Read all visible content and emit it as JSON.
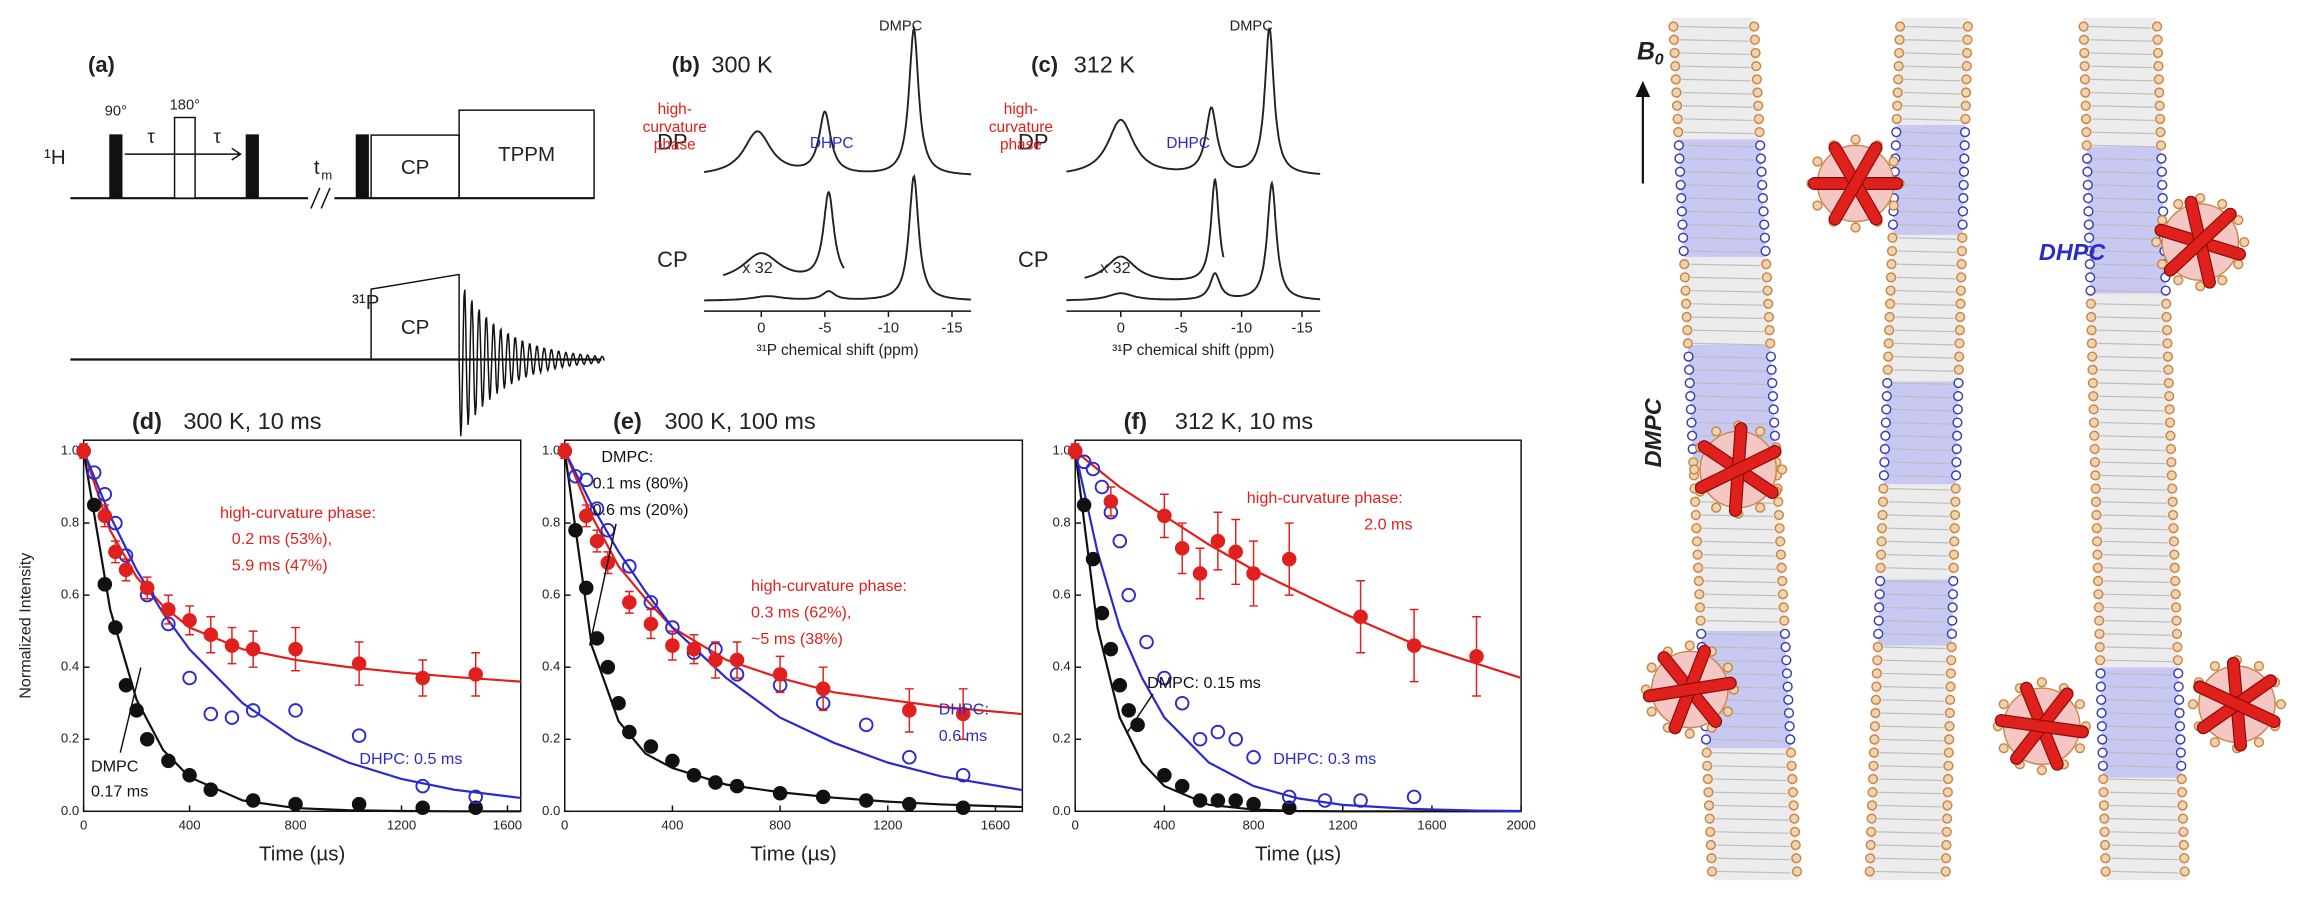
{
  "pulse_sequence": {
    "label": "(a)",
    "h_channel": "¹H",
    "p_channel": "³¹P",
    "pulse_90": "90°",
    "pulse_180": "180°",
    "tau_1": "τ",
    "tau_2": "τ",
    "mixing": "t",
    "mixing_sub": "m",
    "cp_h": "CP",
    "decoupling": "TPPM",
    "cp_p": "CP"
  },
  "spectra": [
    {
      "label": "(b)",
      "temperature": "300 K",
      "xlabel": "³¹P chemical shift (ppm)",
      "xlim": [
        4.5,
        -16.5
      ],
      "xticks": [
        0,
        -5,
        -10,
        -15
      ],
      "peak_labels": {
        "dmpc": "DMPC",
        "hc": [
          "high-",
          "curvature",
          "phase"
        ],
        "dhpc": "DHPC"
      },
      "scale_label": "x 32",
      "traces": [
        {
          "name": "DP",
          "peaks": [
            [
              0.3,
              0.3,
              1.3
            ],
            [
              -5,
              0.42,
              0.55
            ],
            [
              -12,
              1.0,
              0.45
            ]
          ]
        },
        {
          "name": "CP",
          "peaks": [
            [
              -0.5,
              0.03,
              1.5
            ],
            [
              -5.3,
              0.06,
              0.6
            ],
            [
              -12,
              0.85,
              0.45
            ]
          ]
        },
        {
          "range": [
            3,
            -6.5
          ],
          "peaks": [
            [
              0,
              0.2,
              1.8
            ],
            [
              -5.3,
              0.6,
              0.5
            ]
          ]
        }
      ]
    },
    {
      "label": "(c)",
      "temperature": "312 K",
      "xlabel": "³¹P chemical shift (ppm)",
      "xlim": [
        4.5,
        -16.5
      ],
      "xticks": [
        0,
        -5,
        -10,
        -15
      ],
      "peak_labels": {
        "dmpc": "DMPC",
        "hc": [
          "high-",
          "curvature",
          "phase"
        ],
        "dhpc": "DHPC"
      },
      "scale_label": "x 32",
      "traces": [
        {
          "name": "DP",
          "peaks": [
            [
              0,
              0.38,
              1.3
            ],
            [
              -7.5,
              0.45,
              0.55
            ],
            [
              -12.3,
              1.0,
              0.45
            ]
          ]
        },
        {
          "name": "CP",
          "peaks": [
            [
              0,
              0.05,
              1.3
            ],
            [
              -7.8,
              0.18,
              0.5
            ],
            [
              -12.5,
              0.8,
              0.45
            ]
          ]
        },
        {
          "range": [
            3,
            -8.5
          ],
          "peaks": [
            [
              0,
              0.18,
              1.5
            ],
            [
              -7.8,
              0.7,
              0.4
            ]
          ]
        }
      ]
    }
  ],
  "chart_data": [
    {
      "type": "scatter",
      "label": "(d)",
      "title": "300 K, 10 ms",
      "ylabel": "Normalized Intensity",
      "xlabel": "Time (µs)",
      "xlim": [
        0,
        1650
      ],
      "ylim": [
        0,
        1.03
      ],
      "xticks": [
        0,
        400,
        800,
        1200,
        1600
      ],
      "yticks": [
        {
          "value": 0,
          "label": "0.0"
        },
        0.2,
        0.4,
        0.6,
        0.8,
        {
          "value": 1,
          "label": "1.0"
        }
      ],
      "series": [
        {
          "color": "#111111",
          "marker": "filled",
          "x": [
            0,
            40,
            80,
            120,
            160,
            200,
            240,
            320,
            400,
            480,
            640,
            800,
            1040,
            1280,
            1480
          ],
          "values": [
            1.0,
            0.85,
            0.63,
            0.51,
            0.35,
            0.28,
            0.2,
            0.14,
            0.1,
            0.06,
            0.03,
            0.02,
            0.02,
            0.01,
            0.01
          ]
        },
        {
          "color": "#2b2bc8",
          "marker": "open",
          "x": [
            0,
            40,
            80,
            120,
            160,
            240,
            320,
            400,
            480,
            560,
            640,
            800,
            1040,
            1280,
            1480
          ],
          "values": [
            1.0,
            0.94,
            0.88,
            0.8,
            0.71,
            0.6,
            0.52,
            0.37,
            0.27,
            0.26,
            0.28,
            0.28,
            0.21,
            0.07,
            0.04
          ]
        },
        {
          "color": "#e0201c",
          "marker": "filled",
          "x": [
            0,
            80,
            120,
            160,
            240,
            320,
            400,
            480,
            560,
            640,
            800,
            1040,
            1280,
            1480
          ],
          "values": [
            1.0,
            0.82,
            0.72,
            0.67,
            0.62,
            0.56,
            0.53,
            0.49,
            0.46,
            0.45,
            0.45,
            0.41,
            0.37,
            0.38
          ],
          "errors": [
            0.02,
            0.03,
            0.03,
            0.03,
            0.03,
            0.04,
            0.04,
            0.05,
            0.05,
            0.05,
            0.06,
            0.06,
            0.05,
            0.06
          ]
        }
      ],
      "fits": [
        {
          "color": "#e0201c",
          "x": [
            0,
            100,
            200,
            300,
            400,
            600,
            800,
            1000,
            1200,
            1400,
            1650
          ],
          "values": [
            1.0,
            0.78,
            0.65,
            0.57,
            0.51,
            0.45,
            0.42,
            0.4,
            0.385,
            0.373,
            0.36
          ]
        },
        {
          "color": "#111111",
          "x": [
            0,
            100,
            200,
            300,
            400,
            600,
            800,
            1000,
            1200,
            1400,
            1650
          ],
          "values": [
            1.0,
            0.56,
            0.31,
            0.17,
            0.095,
            0.03,
            0.009,
            0.003,
            0.001,
            0,
            0
          ]
        },
        {
          "color": "#2b2bc8",
          "x": [
            0,
            100,
            200,
            300,
            400,
            600,
            800,
            1000,
            1200,
            1400,
            1650
          ],
          "values": [
            1.0,
            0.82,
            0.67,
            0.55,
            0.45,
            0.3,
            0.2,
            0.135,
            0.09,
            0.06,
            0.037
          ]
        }
      ],
      "annotations": [
        {
          "text": "high-curvature phase:",
          "color": "#e0201c"
        },
        {
          "text": "0.2 ms (53%),",
          "color": "#e0201c"
        },
        {
          "text": "5.9 ms (47%)",
          "color": "#e0201c"
        },
        {
          "text": "DHPC: 0.5 ms",
          "color": "#2b2bc8"
        },
        {
          "text": "DMPC",
          "color": "#111111"
        },
        {
          "text": "0.17 ms",
          "color": "#111111"
        }
      ]
    },
    {
      "type": "scatter",
      "label": "(e)",
      "title": "300 K, 100 ms",
      "xlabel": "Time (µs)",
      "xlim": [
        0,
        1700
      ],
      "ylim": [
        0,
        1.03
      ],
      "xticks": [
        0,
        400,
        800,
        1200,
        1600
      ],
      "yticks": [
        {
          "value": 0,
          "label": "0.0"
        },
        0.2,
        0.4,
        0.6,
        0.8,
        {
          "value": 1,
          "label": "1.0"
        }
      ],
      "series": [
        {
          "color": "#111111",
          "marker": "filled",
          "x": [
            0,
            40,
            80,
            120,
            160,
            200,
            240,
            320,
            400,
            480,
            560,
            640,
            800,
            960,
            1120,
            1280,
            1480
          ],
          "values": [
            1.0,
            0.78,
            0.62,
            0.48,
            0.4,
            0.3,
            0.22,
            0.18,
            0.14,
            0.1,
            0.08,
            0.07,
            0.05,
            0.04,
            0.03,
            0.02,
            0.01
          ]
        },
        {
          "color": "#2b2bc8",
          "marker": "open",
          "x": [
            0,
            40,
            80,
            120,
            160,
            240,
            320,
            400,
            480,
            560,
            640,
            800,
            960,
            1120,
            1280,
            1480
          ],
          "values": [
            1.0,
            0.93,
            0.92,
            0.84,
            0.78,
            0.68,
            0.58,
            0.51,
            0.44,
            0.45,
            0.38,
            0.35,
            0.3,
            0.24,
            0.15,
            0.1
          ]
        },
        {
          "color": "#e0201c",
          "marker": "filled",
          "x": [
            0,
            80,
            120,
            160,
            240,
            320,
            400,
            480,
            560,
            640,
            800,
            960,
            1280,
            1480
          ],
          "values": [
            1.0,
            0.82,
            0.75,
            0.69,
            0.58,
            0.52,
            0.46,
            0.45,
            0.42,
            0.42,
            0.38,
            0.34,
            0.28,
            0.27
          ],
          "errors": [
            0.02,
            0.03,
            0.03,
            0.03,
            0.03,
            0.04,
            0.04,
            0.04,
            0.05,
            0.05,
            0.05,
            0.06,
            0.06,
            0.07
          ]
        }
      ],
      "fits": [
        {
          "color": "#e0201c",
          "x": [
            0,
            100,
            200,
            300,
            400,
            600,
            800,
            1000,
            1200,
            1400,
            1700
          ],
          "values": [
            1.0,
            0.82,
            0.68,
            0.59,
            0.51,
            0.42,
            0.37,
            0.33,
            0.31,
            0.29,
            0.27
          ]
        },
        {
          "color": "#111111",
          "x": [
            0,
            100,
            200,
            300,
            400,
            600,
            800,
            1000,
            1200,
            1400,
            1700
          ],
          "values": [
            1.0,
            0.46,
            0.25,
            0.16,
            0.12,
            0.074,
            0.053,
            0.038,
            0.027,
            0.019,
            0.012
          ]
        },
        {
          "color": "#2b2bc8",
          "x": [
            0,
            100,
            200,
            300,
            400,
            600,
            800,
            1000,
            1200,
            1400,
            1700
          ],
          "values": [
            1.0,
            0.85,
            0.72,
            0.61,
            0.51,
            0.37,
            0.26,
            0.19,
            0.135,
            0.097,
            0.059
          ]
        }
      ],
      "annotations": [
        {
          "text": "DMPC:",
          "color": "#111111"
        },
        {
          "text": "0.1 ms (80%)",
          "color": "#111111"
        },
        {
          "text": "0.6 ms (20%)",
          "color": "#111111"
        },
        {
          "text": "high-curvature phase:",
          "color": "#e0201c"
        },
        {
          "text": "0.3 ms (62%),",
          "color": "#e0201c"
        },
        {
          "text": "~5 ms (38%)",
          "color": "#e0201c"
        },
        {
          "text": "DHPC:",
          "color": "#2b2bc8"
        },
        {
          "text": "0.6 ms",
          "color": "#2b2bc8"
        }
      ]
    },
    {
      "type": "scatter",
      "label": "(f)",
      "title": "312 K, 10 ms",
      "xlabel": "Time (µs)",
      "xlim": [
        0,
        2000
      ],
      "ylim": [
        0,
        1.03
      ],
      "xticks": [
        0,
        400,
        800,
        1200,
        1600,
        2000
      ],
      "yticks": [
        {
          "value": 0,
          "label": "0.0"
        },
        0.2,
        0.4,
        0.6,
        0.8,
        {
          "value": 1,
          "label": "1.0"
        }
      ],
      "series": [
        {
          "color": "#111111",
          "marker": "filled",
          "x": [
            0,
            40,
            80,
            120,
            160,
            200,
            240,
            280,
            400,
            480,
            560,
            640,
            720,
            800,
            960
          ],
          "values": [
            1.0,
            0.85,
            0.7,
            0.55,
            0.45,
            0.35,
            0.28,
            0.24,
            0.1,
            0.07,
            0.03,
            0.03,
            0.03,
            0.02,
            0.01
          ]
        },
        {
          "color": "#2b2bc8",
          "marker": "open",
          "x": [
            0,
            40,
            80,
            120,
            160,
            200,
            240,
            320,
            400,
            480,
            560,
            640,
            720,
            800,
            960,
            1120,
            1280,
            1520
          ],
          "values": [
            1.0,
            0.97,
            0.95,
            0.9,
            0.83,
            0.75,
            0.6,
            0.47,
            0.37,
            0.3,
            0.2,
            0.22,
            0.2,
            0.15,
            0.04,
            0.03,
            0.03,
            0.04
          ]
        },
        {
          "color": "#e0201c",
          "marker": "filled",
          "x": [
            0,
            160,
            400,
            480,
            560,
            640,
            720,
            800,
            960,
            1280,
            1520,
            1800
          ],
          "values": [
            1.0,
            0.86,
            0.82,
            0.73,
            0.66,
            0.75,
            0.72,
            0.66,
            0.7,
            0.54,
            0.46,
            0.43
          ],
          "errors": [
            0.02,
            0.04,
            0.06,
            0.07,
            0.07,
            0.08,
            0.09,
            0.09,
            0.1,
            0.1,
            0.1,
            0.11
          ]
        }
      ],
      "fits": [
        {
          "color": "#e0201c",
          "x": [
            0,
            100,
            200,
            300,
            400,
            600,
            800,
            1000,
            1200,
            1500,
            1800,
            2000
          ],
          "values": [
            1.0,
            0.95,
            0.9,
            0.86,
            0.82,
            0.74,
            0.67,
            0.61,
            0.55,
            0.47,
            0.41,
            0.37
          ]
        },
        {
          "color": "#111111",
          "x": [
            0,
            100,
            200,
            300,
            400,
            600,
            800,
            1000,
            1200,
            1500,
            1800,
            2000
          ],
          "values": [
            1.0,
            0.51,
            0.26,
            0.135,
            0.07,
            0.018,
            0.005,
            0.001,
            0,
            0,
            0,
            0
          ]
        },
        {
          "color": "#2b2bc8",
          "x": [
            0,
            100,
            200,
            300,
            400,
            600,
            800,
            1000,
            1200,
            1500,
            1800,
            2000
          ],
          "values": [
            1.0,
            0.72,
            0.51,
            0.37,
            0.26,
            0.135,
            0.07,
            0.036,
            0.018,
            0.007,
            0.002,
            0.001
          ]
        }
      ],
      "annotations": [
        {
          "text": "high-curvature phase:",
          "color": "#e0201c"
        },
        {
          "text": "2.0 ms",
          "color": "#e0201c"
        },
        {
          "text": "DMPC: 0.15 ms",
          "color": "#111111"
        },
        {
          "text": "DHPC: 0.3 ms",
          "color": "#2b2bc8"
        }
      ]
    }
  ],
  "schematic": {
    "field": "B",
    "field_sub": "0",
    "dmpc": "DMPC",
    "dhpc": "DHPC"
  }
}
